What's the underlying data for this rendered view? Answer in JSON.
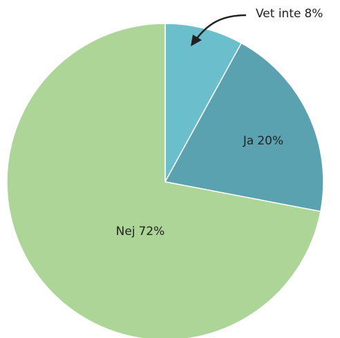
{
  "chart_data": {
    "type": "pie",
    "categories": [
      "Vet inte",
      "Ja",
      "Nej"
    ],
    "values": [
      8,
      20,
      72
    ],
    "value_labels": [
      "8%",
      "20%",
      "72%"
    ],
    "colors": [
      "#6bbecb",
      "#5aa2b0",
      "#acd597"
    ]
  }
}
